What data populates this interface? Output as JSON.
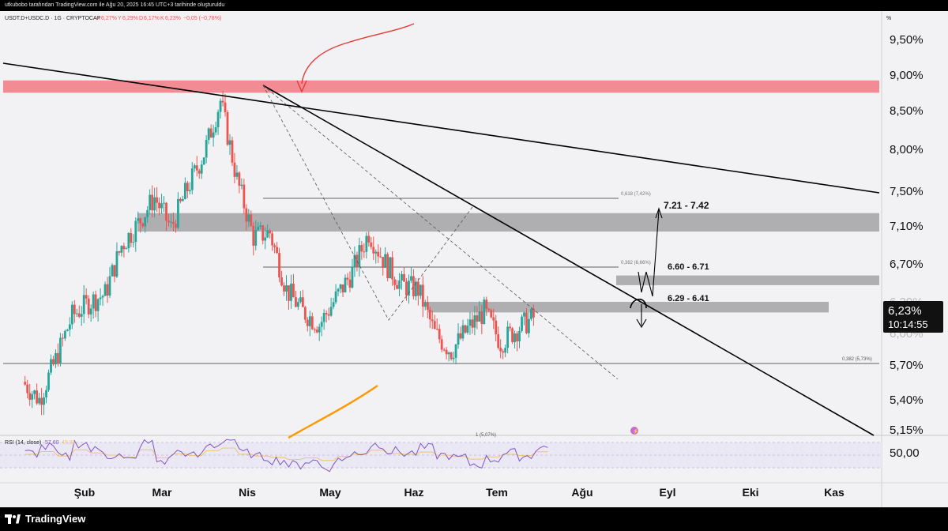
{
  "header": {
    "caption": "utkubobo tarafından TradingView.com ile Ağu 20, 2025 16:45 UTC+3 tarihinde oluşturuldu",
    "symbol": "USDT.D+USDC.D · 1G · CRYPTOCAP",
    "ohlc": {
      "a_label": "A",
      "a_value": "6,27%",
      "y_label": "Y",
      "y_value": "6,29%",
      "d_label": "D",
      "d_value": "6,17%",
      "k_label": "K",
      "k_value": "6,23%",
      "change": "−0,05 (−0,78%)"
    },
    "percent_unit": "%"
  },
  "price_axis": {
    "labels": [
      "9,50%",
      "9,00%",
      "8,50%",
      "8,00%",
      "7,50%",
      "7,10%",
      "6,70%",
      "6,29%",
      "6,00%",
      "5,70%",
      "5,40%",
      "5,15%"
    ],
    "current_price": "6,23%",
    "countdown": "10:14:55"
  },
  "time_axis": {
    "labels": [
      "Şub",
      "Mar",
      "Nis",
      "May",
      "Haz",
      "Tem",
      "Ağu",
      "Eyl",
      "Eki",
      "Kas"
    ]
  },
  "annotations": {
    "zones": [
      {
        "label": "7.21 - 7.42",
        "low": 7.21,
        "high": 7.42
      },
      {
        "label": "6.60 - 6.71",
        "low": 6.6,
        "high": 6.71
      },
      {
        "label": "6.29 - 6.41",
        "low": 6.29,
        "high": 6.41
      }
    ],
    "resistance_zone": {
      "low": 8.79,
      "high": 8.93,
      "color": "#f28b93"
    },
    "fib": {
      "f0618": "0,618 (7,42%)",
      "f0382": "0,382 (6,66%)",
      "f0382b": "0,382 (5,73%)",
      "f1": "1 (5,07%)"
    }
  },
  "rsi": {
    "title": "RSI (14, close)",
    "value": "57,60",
    "value2": "49,81",
    "axis_label": "50,00"
  },
  "footer": {
    "brand": "TradingView"
  },
  "colors": {
    "up": "#26a69a",
    "down": "#ef5350",
    "rsi": "#7e57c2",
    "rsi_ma": "#f5c26b",
    "ma": "#ff9800",
    "zone_gray": "#a3a3a6",
    "bg": "#f2f2f4"
  },
  "chart_data": {
    "type": "candlestick",
    "title": "USDT.D+USDC.D",
    "ylabel": "%",
    "ylim": [
      5.0,
      9.8
    ],
    "x": [
      "2025-01-15",
      "2025-01-22",
      "2025-01-29",
      "2025-02-05",
      "2025-02-12",
      "2025-02-19",
      "2025-02-26",
      "2025-03-05",
      "2025-03-12",
      "2025-03-19",
      "2025-03-26",
      "2025-04-02",
      "2025-04-09",
      "2025-04-16",
      "2025-04-23",
      "2025-04-30",
      "2025-05-07",
      "2025-05-14",
      "2025-05-21",
      "2025-05-28",
      "2025-06-04",
      "2025-06-11",
      "2025-06-18",
      "2025-06-25",
      "2025-07-02",
      "2025-07-09",
      "2025-07-16",
      "2025-07-23",
      "2025-07-30",
      "2025-08-06",
      "2025-08-13",
      "2025-08-20"
    ],
    "close": [
      5.5,
      5.3,
      5.75,
      6.25,
      6.4,
      6.5,
      7.05,
      7.3,
      7.6,
      7.25,
      7.7,
      8.1,
      8.7,
      7.8,
      7.15,
      7.2,
      6.55,
      6.3,
      6.15,
      6.45,
      6.75,
      7.2,
      6.85,
      6.6,
      6.55,
      6.05,
      5.85,
      6.1,
      6.3,
      5.95,
      6.1,
      6.23
    ],
    "rsi_values": [
      52,
      58,
      48,
      62,
      55,
      50,
      45,
      62,
      44,
      53,
      49,
      60,
      66,
      52,
      48,
      45,
      40,
      44,
      38,
      47,
      53,
      61,
      54,
      52,
      57,
      50,
      47,
      41,
      46,
      52,
      49,
      57.6
    ]
  }
}
